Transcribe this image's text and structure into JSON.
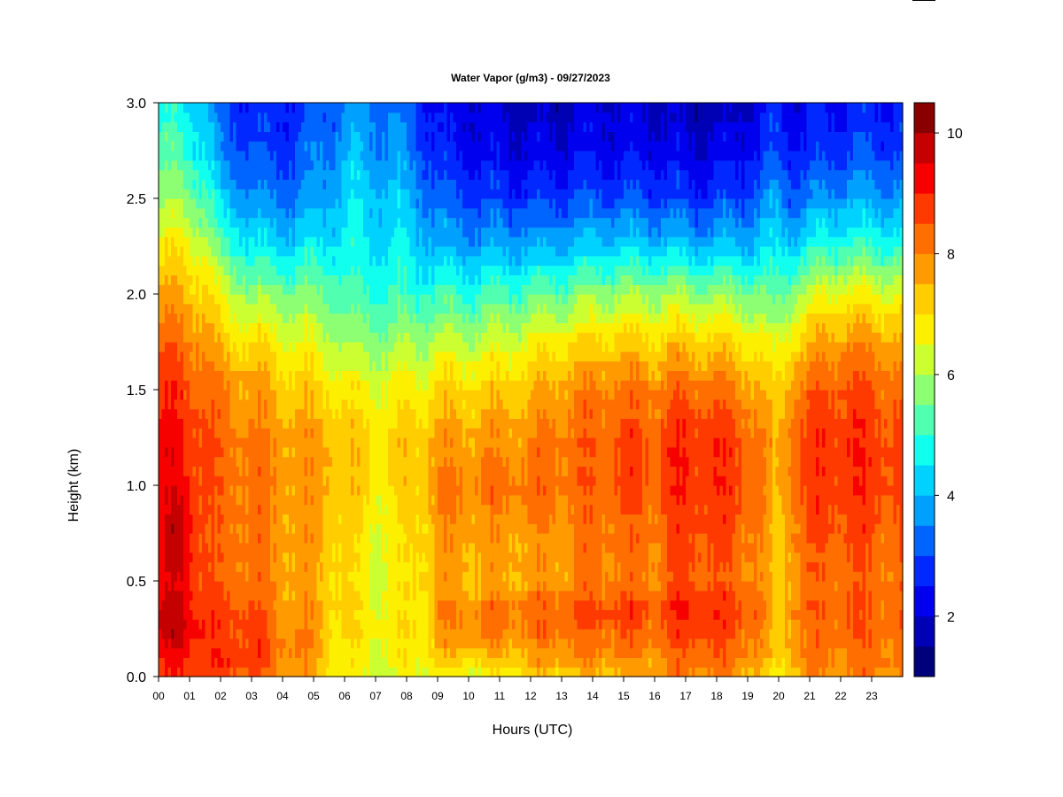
{
  "chart_data": {
    "type": "heatmap",
    "title": "Water Vapor (g/m3) - 09/27/2023",
    "xlabel": "Hours (UTC)",
    "ylabel": "Height (km)",
    "xlim": [
      0,
      24
    ],
    "ylim": [
      0,
      3
    ],
    "x_ticks": [
      "00",
      "01",
      "02",
      "03",
      "04",
      "05",
      "06",
      "07",
      "08",
      "09",
      "10",
      "11",
      "12",
      "13",
      "14",
      "15",
      "16",
      "17",
      "18",
      "19",
      "20",
      "21",
      "22",
      "23"
    ],
    "y_ticks": [
      "0.0",
      "0.5",
      "1.0",
      "1.5",
      "2.0",
      "2.5",
      "3.0"
    ],
    "colorbar": {
      "range": [
        1,
        10.5
      ],
      "ticks": [
        "2",
        "4",
        "6",
        "8",
        "10"
      ],
      "levels": [
        1,
        1.5,
        2,
        2.5,
        3,
        3.5,
        4,
        4.5,
        5,
        5.5,
        6,
        6.5,
        7,
        7.5,
        8,
        8.5,
        9,
        9.5,
        10,
        10.5
      ],
      "colors": [
        "#00007a",
        "#0000b4",
        "#0000ee",
        "#0028ff",
        "#0064ff",
        "#00a0ff",
        "#00d2ff",
        "#10ffef",
        "#50ffb0",
        "#8cff73",
        "#ccff32",
        "#fcf000",
        "#ffcd00",
        "#ff9b00",
        "#ff6e00",
        "#ff3a00",
        "#f70000",
        "#c40000",
        "#880000"
      ]
    },
    "profile_heights_km": [
      0.0,
      0.1,
      0.25,
      0.35,
      0.5,
      0.75,
      1.0,
      1.25,
      1.5,
      1.75,
      2.0,
      2.25,
      2.5,
      2.75,
      3.0
    ],
    "profiles": [
      {
        "hour": 0.0,
        "values": [
          8.6,
          9.0,
          9.5,
          9.5,
          9.3,
          9.4,
          9.2,
          9.1,
          8.9,
          8.4,
          7.6,
          6.7,
          5.8,
          5.2,
          4.8
        ]
      },
      {
        "hour": 0.7,
        "values": [
          8.8,
          9.2,
          9.8,
          9.6,
          9.4,
          9.7,
          9.3,
          9.1,
          8.8,
          8.2,
          7.5,
          6.8,
          5.9,
          5.2,
          4.7
        ]
      },
      {
        "hour": 1.5,
        "values": [
          8.5,
          8.9,
          9.0,
          8.9,
          8.6,
          8.5,
          8.6,
          8.6,
          8.4,
          7.9,
          7.2,
          6.3,
          5.2,
          4.5,
          4.2
        ]
      },
      {
        "hour": 2.0,
        "values": [
          8.7,
          8.9,
          8.6,
          8.5,
          8.3,
          8.2,
          8.3,
          8.3,
          8.0,
          7.2,
          6.5,
          5.3,
          4.2,
          3.4,
          3.0
        ]
      },
      {
        "hour": 3.0,
        "values": [
          8.5,
          8.8,
          8.8,
          8.6,
          8.3,
          8.2,
          8.2,
          8.1,
          7.8,
          7.0,
          5.8,
          4.6,
          3.6,
          3.0,
          2.8
        ]
      },
      {
        "hour": 3.9,
        "values": [
          8.0,
          8.2,
          8.0,
          7.8,
          7.8,
          7.8,
          7.9,
          7.8,
          7.4,
          6.7,
          5.7,
          4.4,
          3.4,
          2.8,
          2.6
        ]
      },
      {
        "hour": 4.8,
        "values": [
          7.6,
          7.9,
          8.0,
          7.8,
          7.6,
          7.7,
          7.8,
          7.7,
          7.2,
          6.5,
          5.6,
          4.5,
          3.6,
          3.2,
          2.9
        ]
      },
      {
        "hour": 5.6,
        "values": [
          6.8,
          7.1,
          7.0,
          7.2,
          7.2,
          7.4,
          7.6,
          7.6,
          7.0,
          6.2,
          5.4,
          4.6,
          4.0,
          3.6,
          3.2
        ]
      },
      {
        "hour": 6.2,
        "values": [
          6.5,
          6.8,
          7.0,
          7.0,
          6.9,
          7.0,
          7.2,
          7.3,
          6.7,
          5.8,
          5.0,
          4.6,
          4.4,
          4.0,
          3.6
        ]
      },
      {
        "hour": 7.0,
        "values": [
          6.2,
          6.5,
          6.8,
          6.6,
          6.4,
          6.6,
          6.9,
          7.0,
          6.6,
          5.8,
          5.0,
          4.5,
          4.2,
          3.7,
          3.4
        ]
      },
      {
        "hour": 7.8,
        "values": [
          6.4,
          6.7,
          6.9,
          6.8,
          6.7,
          6.8,
          7.0,
          7.1,
          6.7,
          5.9,
          5.0,
          4.5,
          4.1,
          3.6,
          3.3
        ]
      },
      {
        "hour": 8.7,
        "values": [
          6.8,
          7.0,
          7.1,
          7.0,
          7.3,
          7.4,
          7.6,
          7.5,
          6.9,
          6.0,
          5.0,
          4.2,
          3.5,
          2.9,
          2.5
        ]
      },
      {
        "hour": 9.0,
        "values": [
          6.6,
          7.2,
          7.8,
          8.0,
          7.6,
          7.8,
          8.0,
          7.7,
          7.1,
          6.2,
          5.0,
          4.0,
          3.2,
          2.6,
          2.3
        ]
      },
      {
        "hour": 10.0,
        "values": [
          6.4,
          7.3,
          8.0,
          8.0,
          7.5,
          7.8,
          8.1,
          7.7,
          7.1,
          6.2,
          5.0,
          3.8,
          3.0,
          2.4,
          2.1
        ]
      },
      {
        "hour": 11.0,
        "values": [
          6.5,
          7.4,
          8.0,
          8.2,
          7.5,
          7.7,
          8.2,
          7.8,
          7.2,
          6.3,
          5.2,
          3.8,
          2.9,
          2.2,
          1.9
        ]
      },
      {
        "hour": 12.0,
        "values": [
          7.0,
          7.6,
          8.2,
          8.3,
          7.7,
          7.8,
          8.2,
          7.9,
          7.4,
          6.6,
          5.3,
          3.9,
          2.8,
          2.1,
          1.8
        ]
      },
      {
        "hour": 13.0,
        "values": [
          7.2,
          7.8,
          8.3,
          8.5,
          7.8,
          7.9,
          8.3,
          8.2,
          7.8,
          6.9,
          5.5,
          4.0,
          2.9,
          2.2,
          1.9
        ]
      },
      {
        "hour": 14.0,
        "values": [
          7.4,
          7.9,
          8.4,
          8.6,
          8.0,
          8.2,
          8.4,
          8.4,
          8.0,
          7.1,
          5.8,
          4.2,
          3.1,
          2.4,
          2.0
        ]
      },
      {
        "hour": 15.0,
        "values": [
          7.6,
          8.0,
          8.5,
          8.8,
          8.1,
          8.3,
          8.6,
          8.6,
          8.2,
          7.2,
          5.9,
          4.3,
          3.0,
          2.3,
          2.0
        ]
      },
      {
        "hour": 16.0,
        "values": [
          7.5,
          7.9,
          8.3,
          8.6,
          8.0,
          8.2,
          8.5,
          8.5,
          8.1,
          7.1,
          5.9,
          4.2,
          3.0,
          2.3,
          2.0
        ]
      },
      {
        "hour": 16.6,
        "values": [
          7.9,
          8.3,
          8.7,
          9.0,
          8.4,
          8.6,
          8.9,
          8.9,
          8.3,
          7.3,
          6.0,
          4.2,
          2.9,
          2.2,
          1.8
        ]
      },
      {
        "hour": 17.5,
        "values": [
          8.0,
          8.4,
          8.8,
          9.1,
          8.5,
          8.7,
          9.0,
          8.9,
          8.3,
          7.3,
          5.8,
          4.0,
          2.8,
          2.1,
          1.7
        ]
      },
      {
        "hour": 18.4,
        "values": [
          7.8,
          8.2,
          8.6,
          8.8,
          8.3,
          8.5,
          8.8,
          8.7,
          8.1,
          7.1,
          5.8,
          4.1,
          2.9,
          2.2,
          1.8
        ]
      },
      {
        "hour": 19.3,
        "values": [
          7.6,
          8.0,
          8.3,
          8.5,
          8.0,
          8.2,
          8.4,
          8.3,
          7.7,
          6.8,
          5.6,
          4.2,
          3.2,
          2.5,
          2.1
        ]
      },
      {
        "hour": 19.9,
        "values": [
          6.3,
          6.8,
          7.0,
          7.1,
          7.0,
          7.1,
          7.2,
          7.3,
          7.0,
          6.3,
          5.2,
          4.4,
          3.8,
          3.0,
          2.6
        ]
      },
      {
        "hour": 20.5,
        "values": [
          7.6,
          8.0,
          8.0,
          8.2,
          8.0,
          8.2,
          8.5,
          8.5,
          8.0,
          7.1,
          5.9,
          4.4,
          3.2,
          2.5,
          2.2
        ]
      },
      {
        "hour": 21.3,
        "values": [
          7.8,
          8.1,
          8.3,
          8.4,
          8.3,
          8.5,
          8.8,
          8.8,
          8.4,
          7.6,
          6.4,
          4.8,
          3.6,
          2.8,
          2.4
        ]
      },
      {
        "hour": 22.2,
        "values": [
          7.9,
          8.2,
          8.4,
          8.5,
          8.4,
          8.6,
          8.9,
          9.0,
          8.6,
          7.9,
          6.7,
          5.0,
          3.8,
          2.9,
          2.5
        ]
      },
      {
        "hour": 23.0,
        "values": [
          8.0,
          8.2,
          8.4,
          8.4,
          8.3,
          8.5,
          8.8,
          8.8,
          8.5,
          7.8,
          6.6,
          5.0,
          3.8,
          3.0,
          2.6
        ]
      },
      {
        "hour": 23.9,
        "values": [
          7.9,
          8.1,
          8.2,
          8.3,
          8.2,
          8.4,
          8.6,
          8.6,
          8.3,
          7.6,
          6.5,
          4.9,
          3.7,
          2.9,
          2.5
        ]
      }
    ]
  }
}
